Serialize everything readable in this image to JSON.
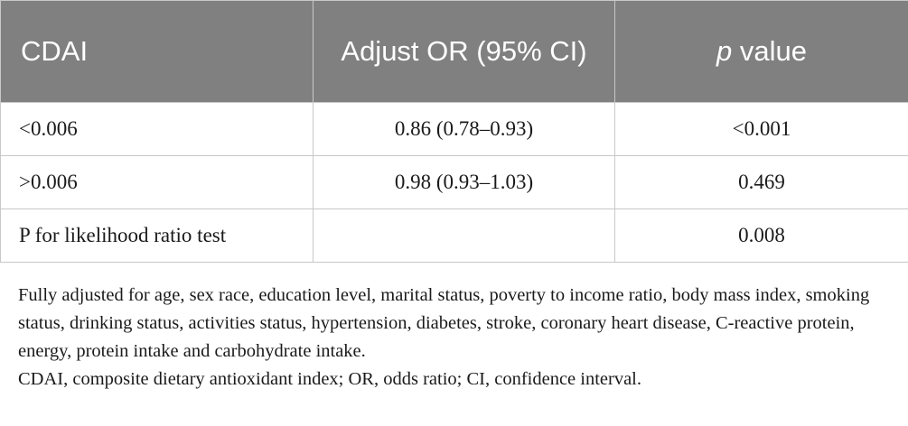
{
  "table": {
    "headers": {
      "col1": "CDAI",
      "col2": "Adjust OR (95% CI)",
      "col3_italic": "p",
      "col3_rest": " value"
    },
    "rows": [
      {
        "label": "<0.006",
        "or": "0.86 (0.78–0.93)",
        "p": "<0.001"
      },
      {
        "label": ">0.006",
        "or": "0.98 (0.93–1.03)",
        "p": "0.469"
      },
      {
        "label": "P for likelihood ratio test",
        "or": "",
        "p": "0.008"
      }
    ]
  },
  "footnote": {
    "line1": "Fully adjusted for age, sex race, education level, marital status, poverty to income ratio, body mass index, smoking status, drinking status, activities status, hypertension, diabetes, stroke, coronary heart disease, C-reactive protein, energy, protein intake and carbohydrate intake.",
    "line2": "CDAI, composite dietary antioxidant index; OR, odds ratio; CI, confidence interval."
  }
}
